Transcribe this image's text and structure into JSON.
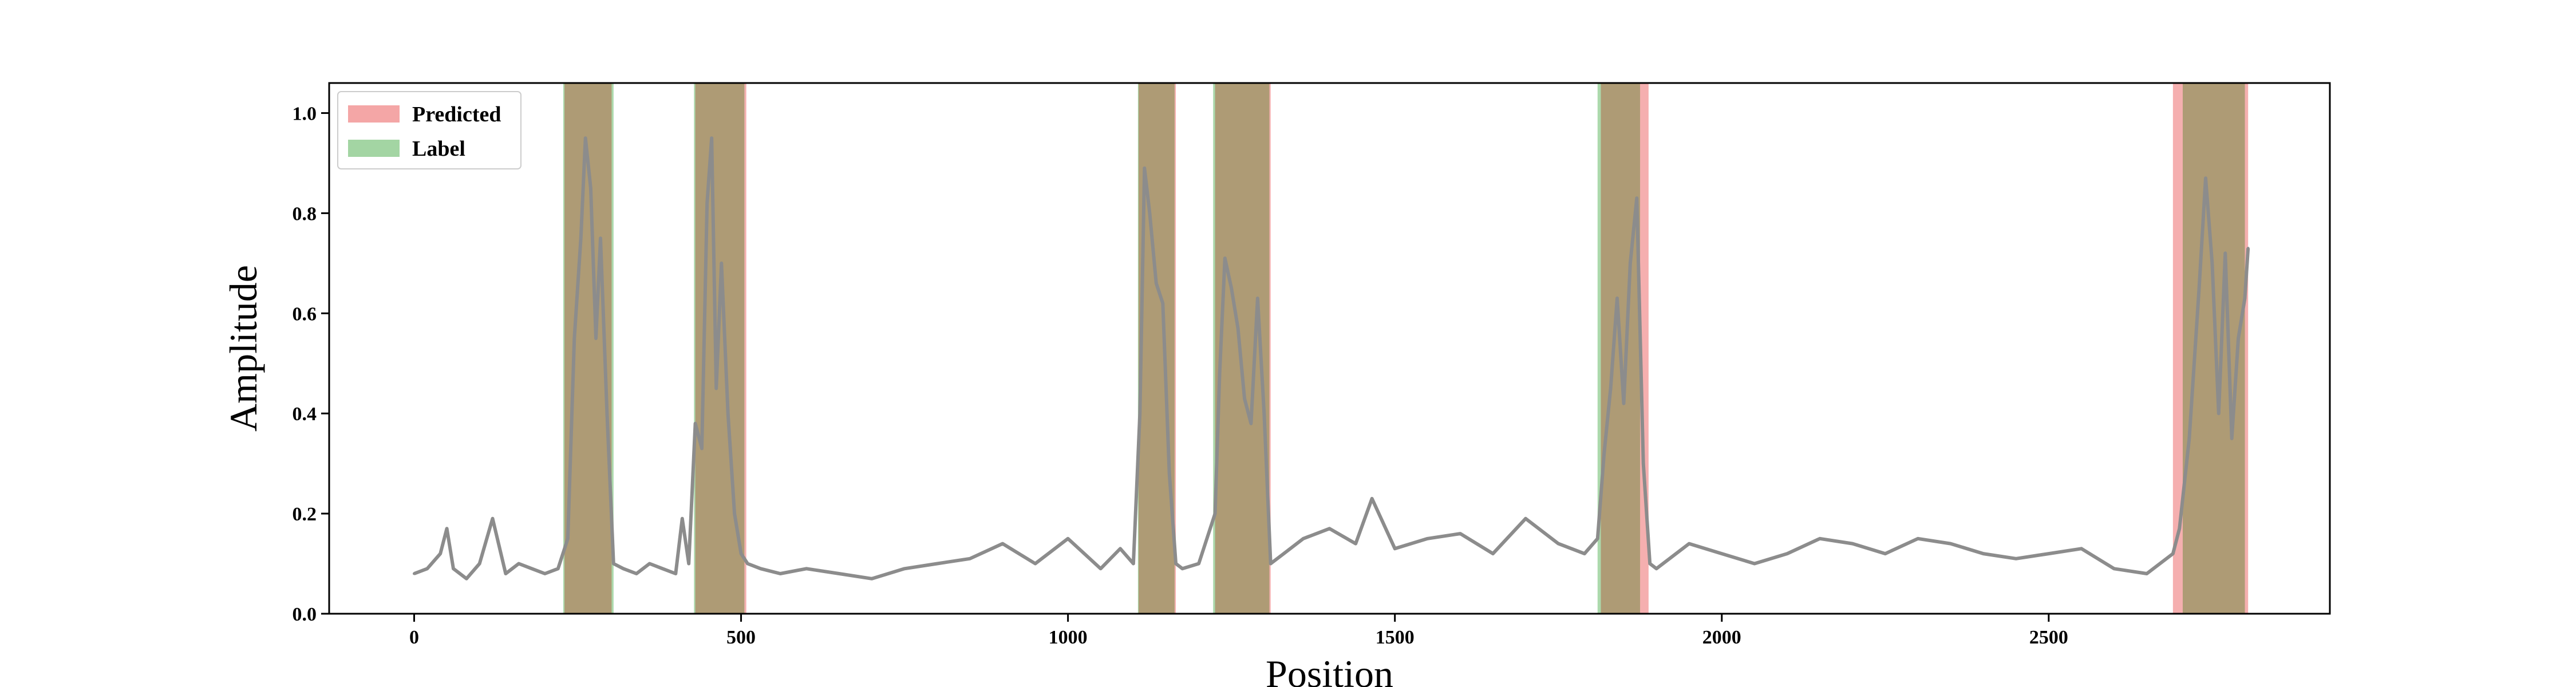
{
  "chart_data": {
    "type": "line",
    "title": "",
    "xlabel": "Position",
    "ylabel": "Amplitude",
    "xlim": [
      -130,
      2930
    ],
    "ylim": [
      0.0,
      1.06
    ],
    "xticks": [
      0,
      500,
      1000,
      1500,
      2000,
      2500
    ],
    "yticks": [
      0.0,
      0.2,
      0.4,
      0.6,
      0.8,
      1.0
    ],
    "xtick_labels": [
      "0",
      "500",
      "1000",
      "1500",
      "2000",
      "2500"
    ],
    "ytick_labels": [
      "0.0",
      "0.2",
      "0.4",
      "0.6",
      "0.8",
      "1.0"
    ],
    "grid": false,
    "legend_position": "top-left",
    "legend": [
      {
        "label": "Predicted",
        "color": "#f4a6a6"
      },
      {
        "label": "Label",
        "color": "#a3d5a3"
      }
    ],
    "predicted_regions": [
      [
        230,
        302
      ],
      [
        430,
        508
      ],
      [
        1108,
        1165
      ],
      [
        1225,
        1310
      ],
      [
        1815,
        1888
      ],
      [
        2690,
        2805
      ]
    ],
    "label_regions": [
      [
        228,
        305
      ],
      [
        428,
        505
      ],
      [
        1107,
        1163
      ],
      [
        1222,
        1308
      ],
      [
        1810,
        1875
      ],
      [
        2705,
        2800
      ]
    ],
    "series": [
      {
        "name": "",
        "color": "#8c8c8c",
        "x": [
          0,
          20,
          40,
          50,
          60,
          80,
          100,
          120,
          140,
          160,
          180,
          200,
          220,
          235,
          245,
          255,
          262,
          270,
          278,
          285,
          295,
          305,
          320,
          340,
          360,
          380,
          400,
          410,
          420,
          430,
          440,
          448,
          455,
          462,
          470,
          480,
          490,
          500,
          510,
          530,
          560,
          600,
          650,
          700,
          750,
          800,
          850,
          900,
          950,
          1000,
          1050,
          1080,
          1100,
          1110,
          1117,
          1125,
          1135,
          1145,
          1155,
          1165,
          1175,
          1200,
          1225,
          1232,
          1240,
          1250,
          1260,
          1270,
          1280,
          1290,
          1300,
          1310,
          1330,
          1360,
          1400,
          1440,
          1465,
          1500,
          1550,
          1600,
          1650,
          1700,
          1750,
          1790,
          1810,
          1820,
          1830,
          1840,
          1850,
          1860,
          1870,
          1880,
          1890,
          1900,
          1950,
          2000,
          2050,
          2100,
          2150,
          2200,
          2250,
          2300,
          2350,
          2400,
          2450,
          2500,
          2550,
          2600,
          2650,
          2690,
          2700,
          2715,
          2730,
          2740,
          2750,
          2760,
          2770,
          2780,
          2790,
          2800,
          2805
        ],
        "y": [
          0.08,
          0.09,
          0.12,
          0.17,
          0.09,
          0.07,
          0.1,
          0.19,
          0.08,
          0.1,
          0.09,
          0.08,
          0.09,
          0.15,
          0.55,
          0.75,
          0.95,
          0.85,
          0.55,
          0.75,
          0.4,
          0.1,
          0.09,
          0.08,
          0.1,
          0.09,
          0.08,
          0.19,
          0.1,
          0.38,
          0.33,
          0.82,
          0.95,
          0.45,
          0.7,
          0.4,
          0.2,
          0.12,
          0.1,
          0.09,
          0.08,
          0.09,
          0.08,
          0.07,
          0.09,
          0.1,
          0.11,
          0.14,
          0.1,
          0.15,
          0.09,
          0.13,
          0.1,
          0.4,
          0.89,
          0.8,
          0.66,
          0.62,
          0.28,
          0.1,
          0.09,
          0.1,
          0.2,
          0.48,
          0.71,
          0.65,
          0.57,
          0.43,
          0.38,
          0.63,
          0.4,
          0.1,
          0.12,
          0.15,
          0.17,
          0.14,
          0.23,
          0.13,
          0.15,
          0.16,
          0.12,
          0.19,
          0.14,
          0.12,
          0.15,
          0.32,
          0.45,
          0.63,
          0.42,
          0.7,
          0.83,
          0.3,
          0.1,
          0.09,
          0.14,
          0.12,
          0.1,
          0.12,
          0.15,
          0.14,
          0.12,
          0.15,
          0.14,
          0.12,
          0.11,
          0.12,
          0.13,
          0.09,
          0.08,
          0.12,
          0.17,
          0.35,
          0.65,
          0.87,
          0.7,
          0.4,
          0.72,
          0.35,
          0.55,
          0.63,
          0.73
        ]
      }
    ]
  }
}
